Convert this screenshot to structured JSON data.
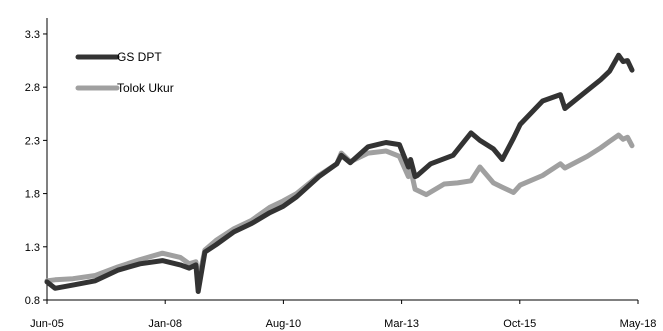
{
  "chart_data": {
    "type": "line",
    "title": "",
    "xlabel": "",
    "ylabel": "",
    "grid": false,
    "legend_position": "top-left",
    "x_tick_labels": [
      "Jun-05",
      "Jan-08",
      "Aug-10",
      "Mar-13",
      "Oct-15",
      "May-18"
    ],
    "y_ticks": [
      0.8,
      1.3,
      1.8,
      2.3,
      2.8,
      3.3
    ],
    "y_tick_labels": [
      "0.8",
      "1.3",
      "1.8",
      "2.3",
      "2.8",
      "3.3"
    ],
    "xlim": [
      2005.42,
      2018.5
    ],
    "ylim": [
      0.8,
      3.45
    ],
    "series": [
      {
        "name": "GS DPT",
        "color": "#333333",
        "x": [
          2005.42,
          2005.6,
          2006.0,
          2006.5,
          2007.0,
          2007.5,
          2008.0,
          2008.4,
          2008.6,
          2008.75,
          2008.8,
          2008.95,
          2009.2,
          2009.6,
          2010.0,
          2010.4,
          2010.7,
          2011.0,
          2011.5,
          2011.9,
          2012.0,
          2012.2,
          2012.6,
          2013.0,
          2013.3,
          2013.5,
          2013.55,
          2013.65,
          2013.7,
          2014.0,
          2014.5,
          2014.9,
          2015.1,
          2015.4,
          2015.6,
          2015.85,
          2016.0,
          2016.5,
          2016.9,
          2017.0,
          2017.5,
          2017.8,
          2018.0,
          2018.2,
          2018.3,
          2018.4,
          2018.5
        ],
        "values": [
          0.97,
          0.91,
          0.94,
          0.98,
          1.08,
          1.14,
          1.17,
          1.13,
          1.1,
          1.13,
          0.88,
          1.25,
          1.32,
          1.44,
          1.52,
          1.62,
          1.68,
          1.77,
          1.96,
          2.08,
          2.16,
          2.09,
          2.24,
          2.28,
          2.26,
          2.05,
          2.12,
          1.96,
          1.97,
          2.08,
          2.16,
          2.37,
          2.3,
          2.22,
          2.12,
          2.32,
          2.45,
          2.67,
          2.73,
          2.6,
          2.77,
          2.87,
          2.95,
          3.1,
          3.04,
          3.05,
          2.96
        ]
      },
      {
        "name": "Tolok Ukur",
        "color": "#a0a0a0",
        "x": [
          2005.42,
          2005.6,
          2006.0,
          2006.5,
          2007.0,
          2007.5,
          2008.0,
          2008.4,
          2008.6,
          2008.75,
          2008.8,
          2008.95,
          2009.2,
          2009.6,
          2010.0,
          2010.4,
          2010.7,
          2011.0,
          2011.5,
          2011.9,
          2012.0,
          2012.2,
          2012.6,
          2013.0,
          2013.3,
          2013.5,
          2013.55,
          2013.65,
          2013.9,
          2014.3,
          2014.6,
          2014.9,
          2015.1,
          2015.4,
          2015.6,
          2015.85,
          2016.0,
          2016.5,
          2016.9,
          2017.0,
          2017.5,
          2017.8,
          2018.0,
          2018.2,
          2018.3,
          2018.4,
          2018.5
        ],
        "values": [
          0.98,
          0.99,
          1.0,
          1.03,
          1.11,
          1.18,
          1.24,
          1.2,
          1.14,
          1.16,
          0.97,
          1.27,
          1.36,
          1.47,
          1.55,
          1.67,
          1.73,
          1.8,
          1.97,
          2.08,
          2.18,
          2.1,
          2.18,
          2.2,
          2.15,
          1.96,
          2.03,
          1.84,
          1.79,
          1.89,
          1.9,
          1.92,
          2.05,
          1.9,
          1.86,
          1.81,
          1.88,
          1.97,
          2.08,
          2.04,
          2.15,
          2.23,
          2.29,
          2.35,
          2.31,
          2.33,
          2.25
        ]
      }
    ]
  }
}
